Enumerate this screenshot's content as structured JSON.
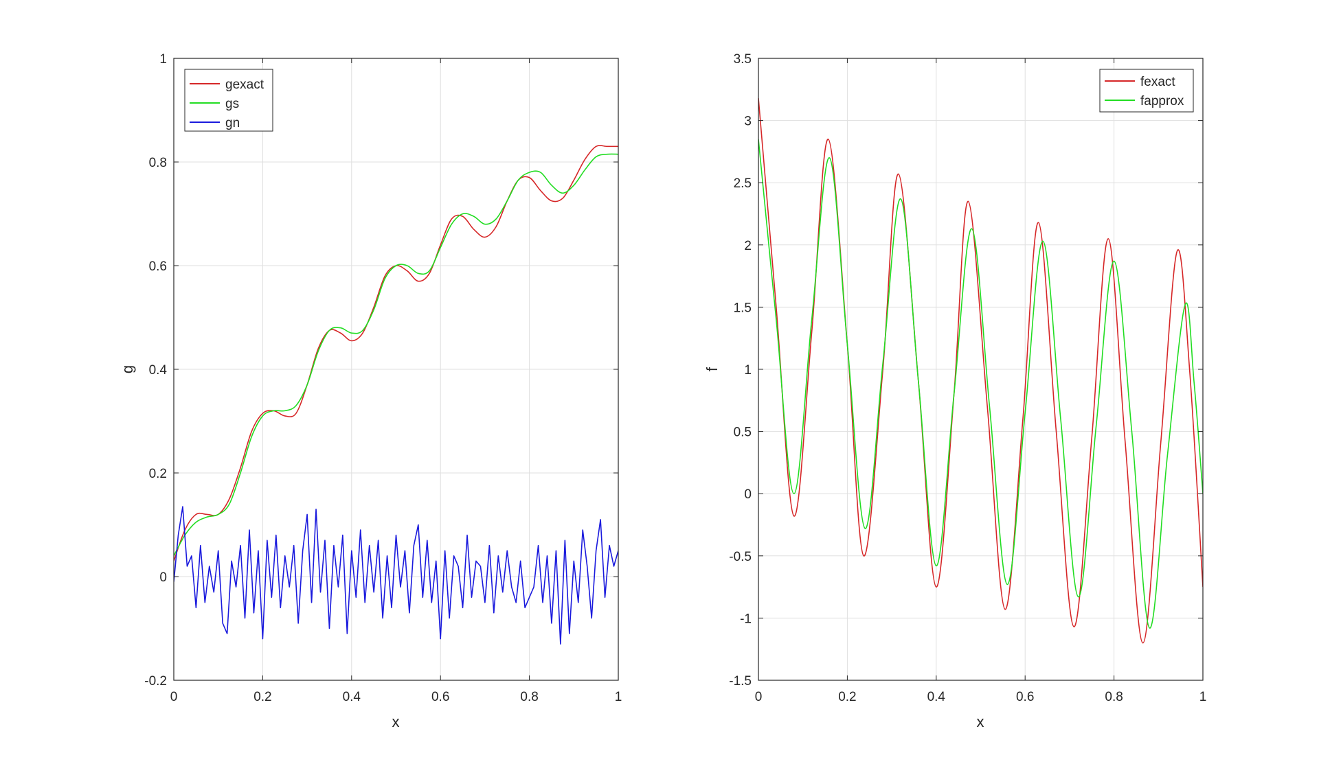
{
  "chart_data": [
    {
      "type": "line",
      "xlabel": "x",
      "ylabel": "g",
      "xlim": [
        0,
        1
      ],
      "ylim": [
        -0.2,
        1
      ],
      "xticks": [
        0,
        0.2,
        0.4,
        0.6,
        0.8,
        1
      ],
      "xtick_labels": [
        "0",
        "0.2",
        "0.4",
        "0.6",
        "0.8",
        "1"
      ],
      "yticks": [
        -0.2,
        0,
        0.2,
        0.4,
        0.6,
        0.8,
        1
      ],
      "ytick_labels": [
        "-0.2",
        "0",
        "0.2",
        "0.4",
        "0.6",
        "0.8",
        "1"
      ],
      "grid": true,
      "legend_position": "top-left",
      "series": [
        {
          "name": "gexact",
          "color": "#d62728",
          "x": [
            0,
            0.025,
            0.05,
            0.075,
            0.1,
            0.125,
            0.15,
            0.175,
            0.2,
            0.225,
            0.25,
            0.275,
            0.3,
            0.325,
            0.35,
            0.375,
            0.4,
            0.425,
            0.45,
            0.475,
            0.5,
            0.525,
            0.55,
            0.575,
            0.6,
            0.625,
            0.65,
            0.675,
            0.7,
            0.725,
            0.75,
            0.775,
            0.8,
            0.825,
            0.85,
            0.875,
            0.9,
            0.925,
            0.95,
            0.975,
            1
          ],
          "y": [
            0.03,
            0.09,
            0.12,
            0.12,
            0.12,
            0.15,
            0.21,
            0.28,
            0.315,
            0.32,
            0.31,
            0.315,
            0.37,
            0.44,
            0.475,
            0.47,
            0.455,
            0.47,
            0.52,
            0.58,
            0.6,
            0.59,
            0.57,
            0.585,
            0.64,
            0.69,
            0.695,
            0.67,
            0.655,
            0.675,
            0.725,
            0.765,
            0.77,
            0.745,
            0.725,
            0.73,
            0.765,
            0.805,
            0.83,
            0.83,
            0.83
          ]
        },
        {
          "name": "gs",
          "color": "#22dd22",
          "x": [
            0,
            0.025,
            0.05,
            0.075,
            0.1,
            0.125,
            0.15,
            0.175,
            0.2,
            0.225,
            0.25,
            0.275,
            0.3,
            0.325,
            0.35,
            0.375,
            0.4,
            0.425,
            0.45,
            0.475,
            0.5,
            0.525,
            0.55,
            0.575,
            0.6,
            0.625,
            0.65,
            0.675,
            0.7,
            0.725,
            0.75,
            0.775,
            0.8,
            0.825,
            0.85,
            0.875,
            0.9,
            0.925,
            0.95,
            0.975,
            1
          ],
          "y": [
            0.04,
            0.08,
            0.105,
            0.115,
            0.12,
            0.14,
            0.2,
            0.27,
            0.31,
            0.32,
            0.32,
            0.33,
            0.37,
            0.435,
            0.475,
            0.48,
            0.47,
            0.475,
            0.515,
            0.575,
            0.6,
            0.6,
            0.585,
            0.59,
            0.635,
            0.68,
            0.7,
            0.695,
            0.68,
            0.69,
            0.725,
            0.765,
            0.78,
            0.78,
            0.755,
            0.74,
            0.755,
            0.785,
            0.81,
            0.815,
            0.815
          ]
        },
        {
          "name": "gn",
          "color": "#1a1add",
          "x": [
            0,
            0.01,
            0.02,
            0.03,
            0.04,
            0.05,
            0.06,
            0.07,
            0.08,
            0.09,
            0.1,
            0.11,
            0.12,
            0.13,
            0.14,
            0.15,
            0.16,
            0.17,
            0.18,
            0.19,
            0.2,
            0.21,
            0.22,
            0.23,
            0.24,
            0.25,
            0.26,
            0.27,
            0.28,
            0.29,
            0.3,
            0.31,
            0.32,
            0.33,
            0.34,
            0.35,
            0.36,
            0.37,
            0.38,
            0.39,
            0.4,
            0.41,
            0.42,
            0.43,
            0.44,
            0.45,
            0.46,
            0.47,
            0.48,
            0.49,
            0.5,
            0.51,
            0.52,
            0.53,
            0.54,
            0.55,
            0.56,
            0.57,
            0.58,
            0.59,
            0.6,
            0.61,
            0.62,
            0.63,
            0.64,
            0.65,
            0.66,
            0.67,
            0.68,
            0.69,
            0.7,
            0.71,
            0.72,
            0.73,
            0.74,
            0.75,
            0.76,
            0.77,
            0.78,
            0.79,
            0.8,
            0.81,
            0.82,
            0.83,
            0.84,
            0.85,
            0.86,
            0.87,
            0.88,
            0.89,
            0.9,
            0.91,
            0.92,
            0.93,
            0.94,
            0.95,
            0.96,
            0.97,
            0.98,
            0.99,
            1
          ],
          "y": [
            -0.01,
            0.08,
            0.135,
            0.02,
            0.04,
            -0.06,
            0.06,
            -0.05,
            0.02,
            -0.03,
            0.05,
            -0.09,
            -0.11,
            0.03,
            -0.02,
            0.06,
            -0.08,
            0.09,
            -0.07,
            0.05,
            -0.12,
            0.07,
            -0.04,
            0.08,
            -0.06,
            0.04,
            -0.02,
            0.06,
            -0.09,
            0.05,
            0.12,
            -0.05,
            0.13,
            -0.03,
            0.07,
            -0.1,
            0.06,
            -0.02,
            0.08,
            -0.11,
            0.05,
            -0.04,
            0.09,
            -0.05,
            0.06,
            -0.03,
            0.07,
            -0.08,
            0.04,
            -0.06,
            0.08,
            -0.02,
            0.05,
            -0.07,
            0.06,
            0.1,
            -0.04,
            0.07,
            -0.05,
            0.03,
            -0.12,
            0.05,
            -0.08,
            0.04,
            0.02,
            -0.06,
            0.08,
            -0.04,
            0.03,
            0.02,
            -0.05,
            0.06,
            -0.07,
            0.04,
            -0.03,
            0.05,
            -0.02,
            -0.05,
            0.03,
            -0.06,
            -0.04,
            -0.02,
            0.06,
            -0.05,
            0.04,
            -0.09,
            0.05,
            -0.13,
            0.07,
            -0.11,
            0.03,
            -0.05,
            0.09,
            0.02,
            -0.08,
            0.05,
            0.11,
            -0.04,
            0.06,
            0.02,
            0.05
          ]
        }
      ]
    },
    {
      "type": "line",
      "xlabel": "x",
      "ylabel": "f",
      "xlim": [
        0,
        1
      ],
      "ylim": [
        -1.5,
        3.5
      ],
      "xticks": [
        0,
        0.2,
        0.4,
        0.6,
        0.8,
        1
      ],
      "xtick_labels": [
        "0",
        "0.2",
        "0.4",
        "0.6",
        "0.8",
        "1"
      ],
      "yticks": [
        -1.5,
        -1,
        -0.5,
        0,
        0.5,
        1,
        1.5,
        2,
        2.5,
        3,
        3.5
      ],
      "ytick_labels": [
        "-1.5",
        "-1",
        "-0.5",
        "0",
        "0.5",
        "1",
        "1.5",
        "2",
        "2.5",
        "3",
        "3.5"
      ],
      "grid": true,
      "legend_position": "top-right",
      "series": [
        {
          "name": "fexact",
          "color": "#d62728",
          "x": [
            0,
            0.04,
            0.08,
            0.12,
            0.157,
            0.2,
            0.237,
            0.28,
            0.315,
            0.36,
            0.4,
            0.44,
            0.472,
            0.515,
            0.555,
            0.595,
            0.63,
            0.67,
            0.71,
            0.75,
            0.787,
            0.825,
            0.865,
            0.905,
            0.942,
            0.97,
            1
          ],
          "y": [
            3.18,
            1.5,
            -0.18,
            1.3,
            2.85,
            1.2,
            -0.5,
            1.0,
            2.57,
            0.9,
            -0.75,
            0.8,
            2.35,
            0.7,
            -0.93,
            0.6,
            2.18,
            0.5,
            -1.07,
            0.45,
            2.05,
            0.42,
            -1.2,
            0.4,
            1.95,
            1.0,
            -0.75
          ]
        },
        {
          "name": "fapprox",
          "color": "#22dd22",
          "x": [
            0,
            0.04,
            0.08,
            0.12,
            0.16,
            0.2,
            0.24,
            0.28,
            0.32,
            0.36,
            0.4,
            0.44,
            0.48,
            0.52,
            0.56,
            0.6,
            0.64,
            0.68,
            0.72,
            0.76,
            0.8,
            0.84,
            0.88,
            0.92,
            0.96,
            0.98,
            1
          ],
          "y": [
            2.85,
            1.4,
            0.0,
            1.4,
            2.7,
            1.2,
            -0.28,
            1.05,
            2.37,
            0.9,
            -0.58,
            0.8,
            2.13,
            0.7,
            -0.73,
            0.65,
            2.03,
            0.6,
            -0.83,
            0.55,
            1.87,
            0.5,
            -1.08,
            0.3,
            1.52,
            0.9,
            0.0
          ]
        }
      ]
    }
  ]
}
